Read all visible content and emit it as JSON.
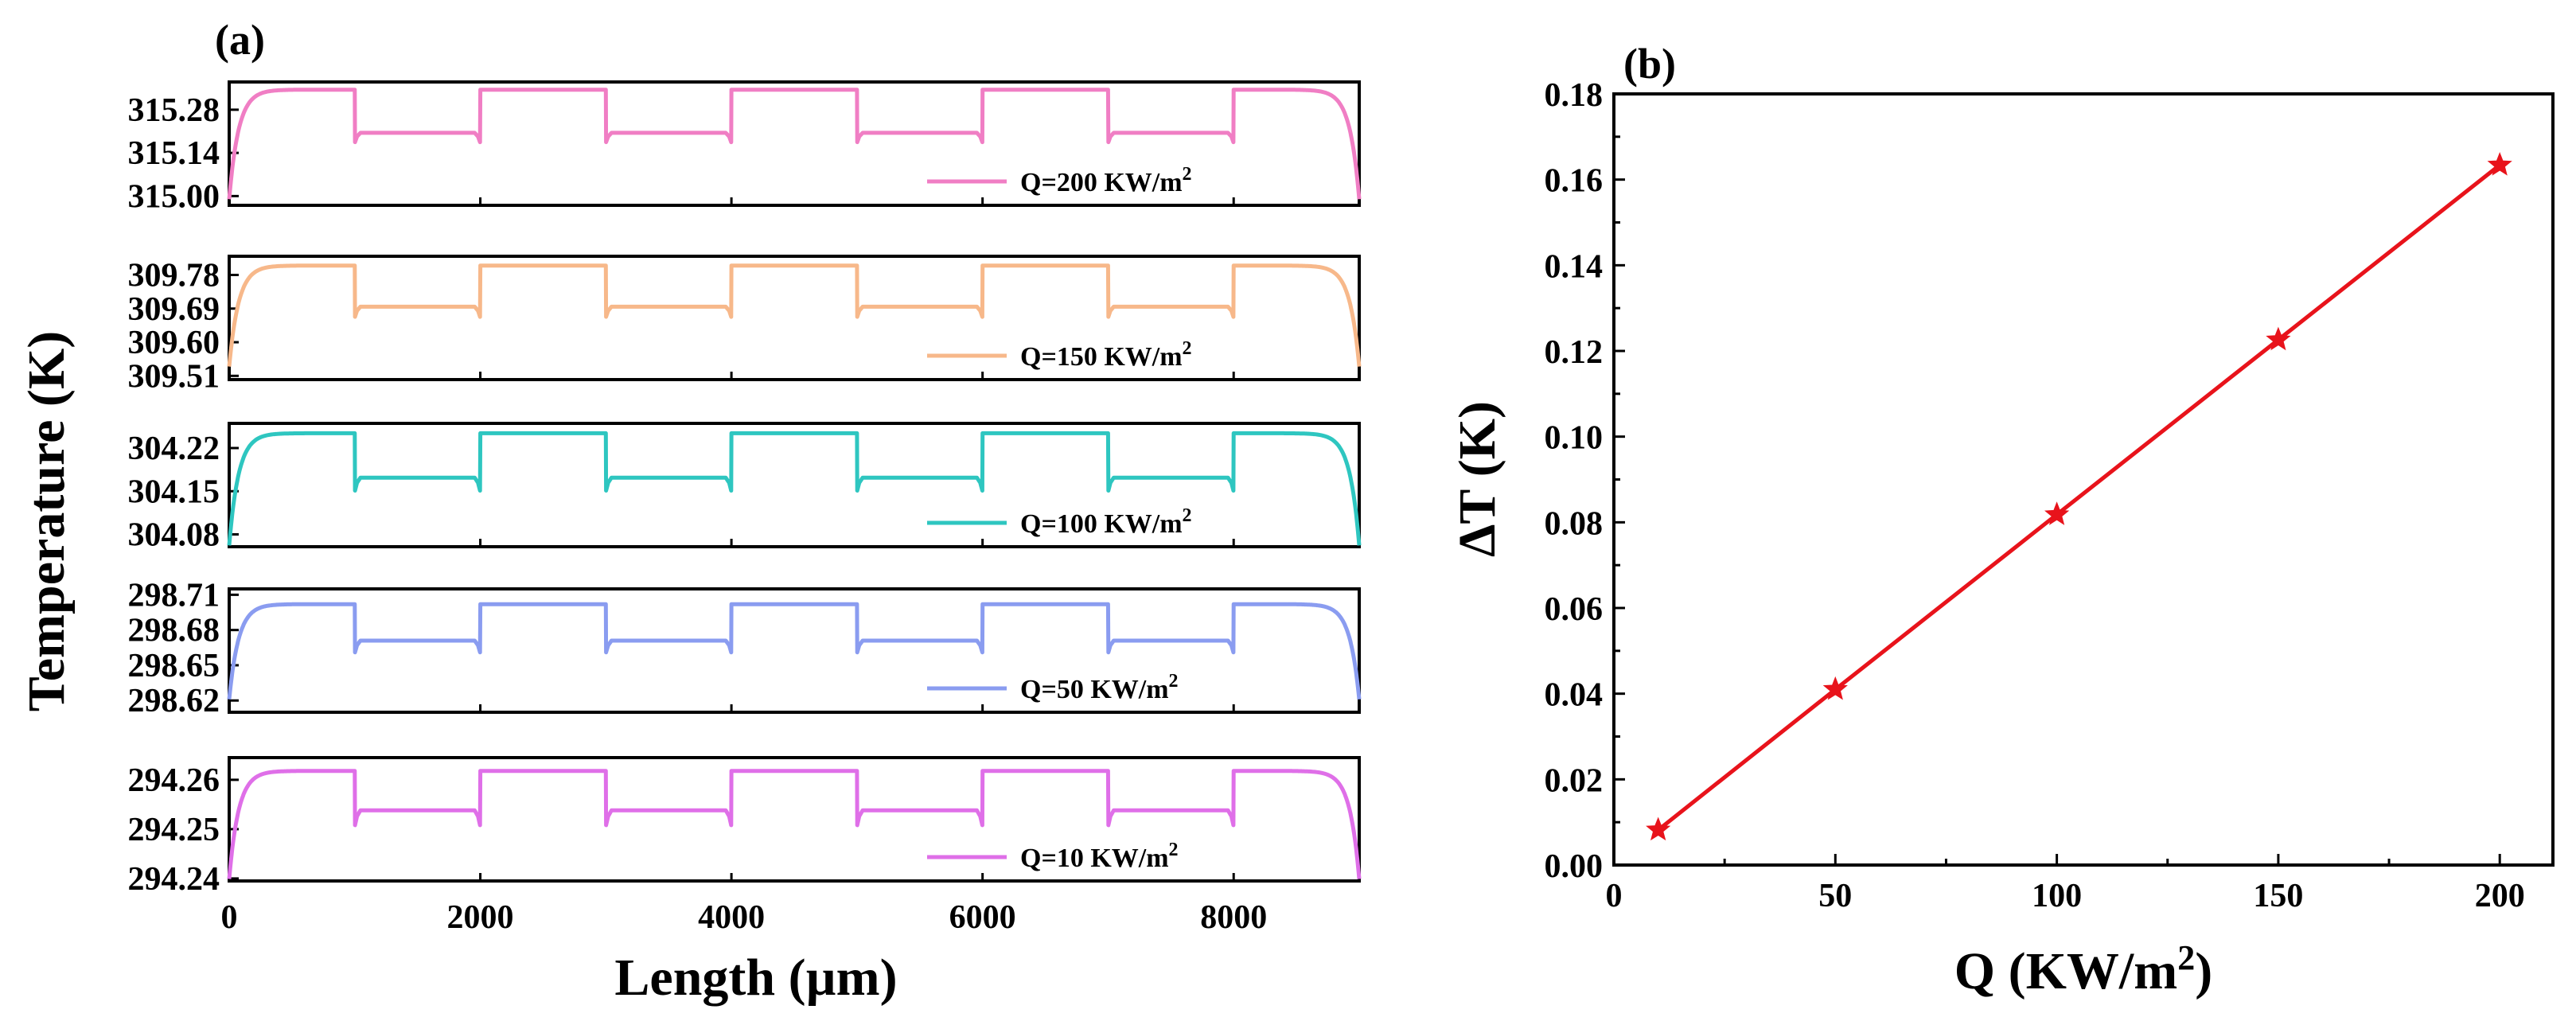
{
  "chart_data": [
    {
      "panel_label": "(a)",
      "type": "line",
      "xlabel": "Length (µm)",
      "ylabel": "Temperature (K)",
      "xlim": [
        0,
        9000
      ],
      "xticks": [
        0,
        2000,
        4000,
        6000,
        8000
      ],
      "xtick_labels": [
        "0",
        "2000",
        "4000",
        "6000",
        "8000"
      ],
      "profile": {
        "fin_segments": [
          [
            0,
            1000
          ],
          [
            2000,
            3000
          ],
          [
            4000,
            5000
          ],
          [
            6000,
            7000
          ],
          [
            8000,
            9000
          ]
        ],
        "gap_segments": [
          [
            1000,
            2000
          ],
          [
            3000,
            4000
          ],
          [
            5000,
            6000
          ],
          [
            7000,
            8000
          ]
        ]
      },
      "subplots": [
        {
          "legend": "Q=200 KW/m",
          "legend_sup": "2",
          "color": "#f07ec4",
          "ylim": [
            314.97,
            315.37
          ],
          "yticks": [
            315.0,
            315.14,
            315.28
          ],
          "ytick_labels": [
            "315.00",
            "315.14",
            "315.28"
          ],
          "t_min": 314.99,
          "t_max": 315.345,
          "t_gap": 315.205,
          "t_dip": 315.175
        },
        {
          "legend": "Q=150 KW/m",
          "legend_sup": "2",
          "color": "#f7b88a",
          "ylim": [
            309.5,
            309.83
          ],
          "yticks": [
            309.51,
            309.6,
            309.69,
            309.78
          ],
          "ytick_labels": [
            "309.51",
            "309.60",
            "309.69",
            "309.78"
          ],
          "t_min": 309.535,
          "t_max": 309.805,
          "t_gap": 309.695,
          "t_dip": 309.668
        },
        {
          "legend": "Q=100 KW/m",
          "legend_sup": "2",
          "color": "#2ec6c0",
          "ylim": [
            304.06,
            304.26
          ],
          "yticks": [
            304.08,
            304.15,
            304.22
          ],
          "ytick_labels": [
            "304.08",
            "304.15",
            "304.22"
          ],
          "t_min": 304.062,
          "t_max": 304.244,
          "t_gap": 304.172,
          "t_dip": 304.151
        },
        {
          "legend": "Q=50 KW/m",
          "legend_sup": "2",
          "color": "#8a9cf0",
          "ylim": [
            298.61,
            298.715
          ],
          "yticks": [
            298.62,
            298.65,
            298.68,
            298.71
          ],
          "ytick_labels": [
            "298.62",
            "298.65",
            "298.68",
            "298.71"
          ],
          "t_min": 298.621,
          "t_max": 298.702,
          "t_gap": 298.671,
          "t_dip": 298.661
        },
        {
          "legend": "Q=10 KW/m",
          "legend_sup": "2",
          "color": "#df6fe8",
          "ylim": [
            294.2395,
            294.2645
          ],
          "yticks": [
            294.24,
            294.25,
            294.26
          ],
          "ytick_labels": [
            "294.24",
            "294.25",
            "294.26"
          ],
          "t_min": 294.2399,
          "t_max": 294.2618,
          "t_gap": 294.2538,
          "t_dip": 294.2508
        }
      ]
    },
    {
      "panel_label": "(b)",
      "type": "line",
      "marker": "star",
      "color": "#e8131b",
      "x": [
        10,
        50,
        100,
        150,
        200
      ],
      "values": [
        0.0082,
        0.041,
        0.0818,
        0.1226,
        0.1634
      ],
      "xlabel": "Q (KW/m",
      "xlabel_sup": "2",
      "xlabel_close": ")",
      "ylabel": "ΔT (K)",
      "xlim": [
        0,
        212
      ],
      "ylim": [
        0,
        0.18
      ],
      "xticks": [
        0,
        50,
        100,
        150,
        200
      ],
      "xtick_labels": [
        "0",
        "50",
        "100",
        "150",
        "200"
      ],
      "yticks": [
        0,
        0.02,
        0.04,
        0.06,
        0.08,
        0.1,
        0.12,
        0.14,
        0.16,
        0.18
      ],
      "ytick_labels": [
        "0.00",
        "0.02",
        "0.04",
        "0.06",
        "0.08",
        "0.10",
        "0.12",
        "0.14",
        "0.16",
        "0.18"
      ]
    }
  ]
}
